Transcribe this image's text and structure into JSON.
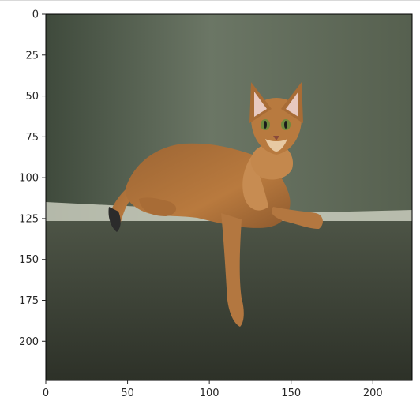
{
  "figure": {
    "image_subject": "cat-photo",
    "colors": {
      "backdrop": "#5f6a5a",
      "sofa": "#444a3c",
      "cat_fur": "#b07338",
      "cat_light": "#d9a16b",
      "ear_inner": "#e8c9c0",
      "tail_tip": "#2b2b2b",
      "ticks": "#262626"
    },
    "axes": {
      "x_ticks": [
        0,
        50,
        100,
        150,
        200
      ],
      "y_ticks": [
        0,
        25,
        50,
        75,
        100,
        125,
        150,
        175,
        200
      ],
      "x_limit": [
        0,
        224
      ],
      "y_limit": [
        224,
        0
      ]
    }
  },
  "x_tick_labels": [
    "0",
    "50",
    "100",
    "150",
    "200"
  ],
  "y_tick_labels": [
    "0",
    "25",
    "50",
    "75",
    "100",
    "125",
    "150",
    "175",
    "200"
  ]
}
